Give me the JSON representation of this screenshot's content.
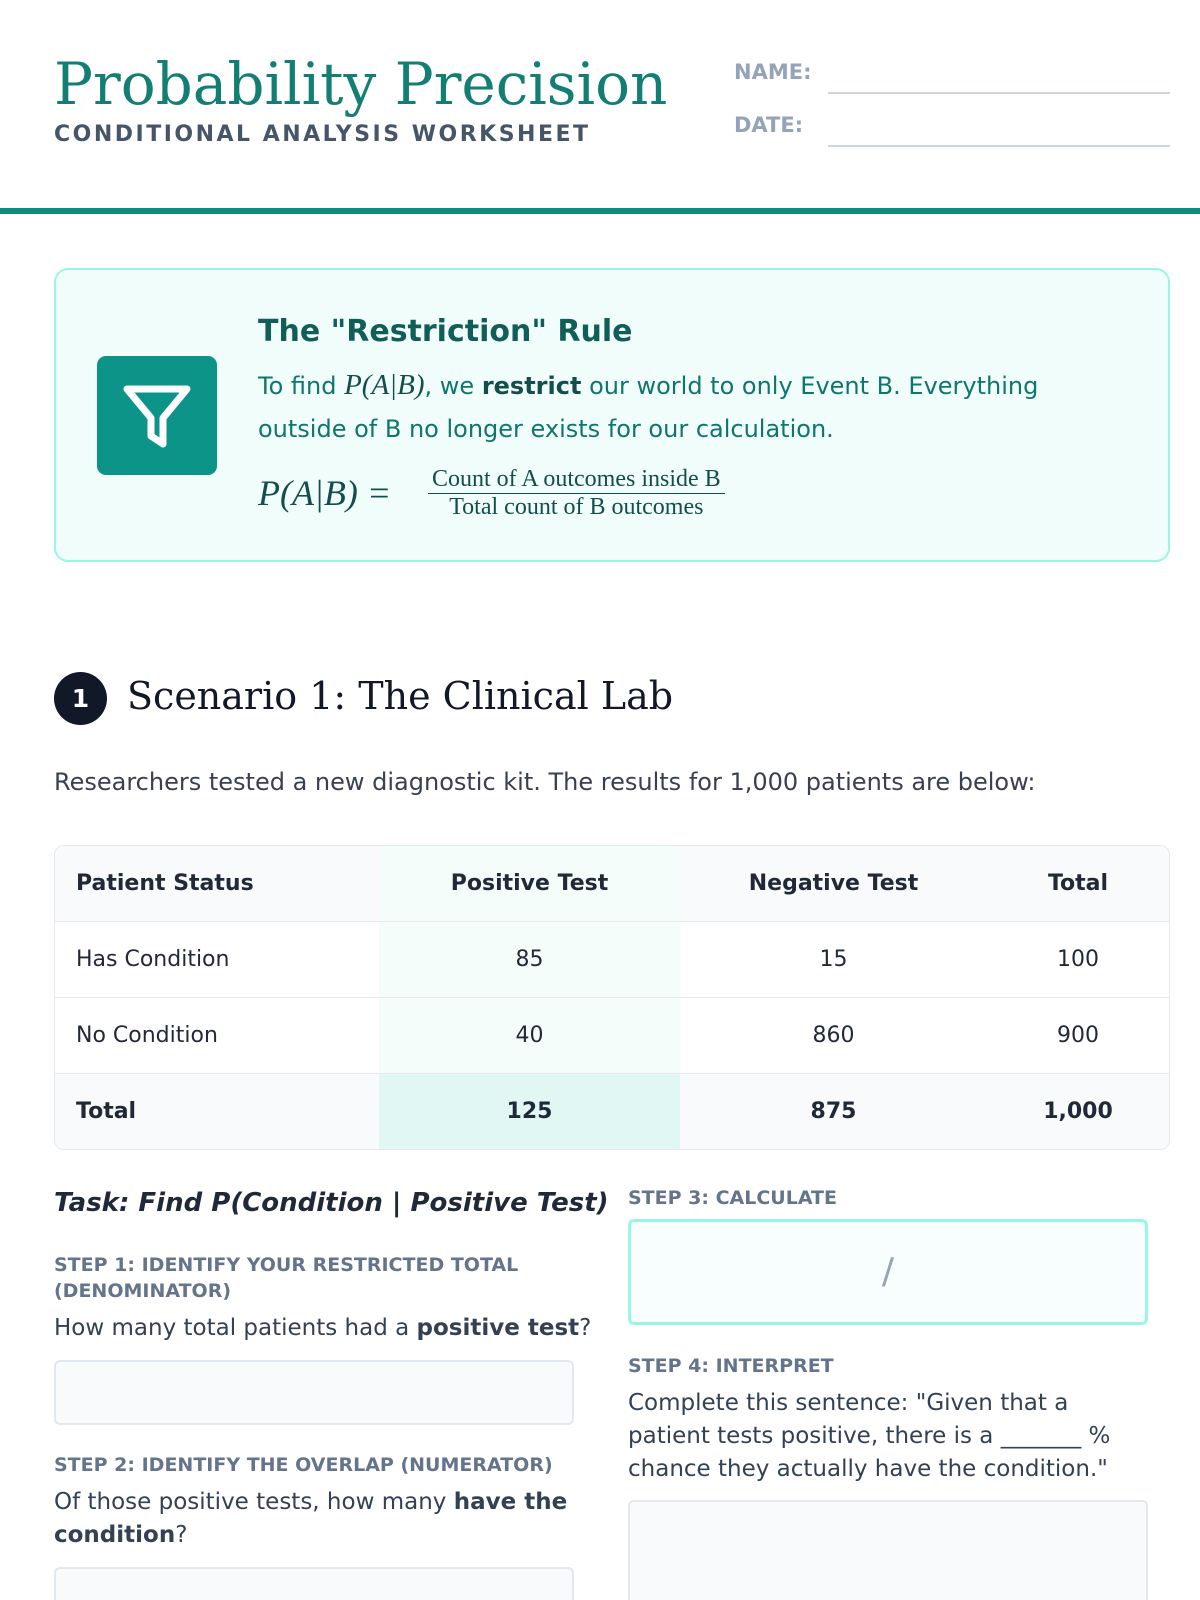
{
  "header": {
    "title": "Probability Precision",
    "subtitle": "CONDITIONAL ANALYSIS WORKSHEET",
    "fields": [
      "NAME:",
      "DATE:"
    ]
  },
  "rule_box": {
    "title": "The \"Restriction\" Rule",
    "text": [
      "To find ",
      "P(A|B)",
      ", we ",
      "restrict",
      " our world to only Event B. Everything outside of B no longer exists for our calculation."
    ],
    "formula": {
      "lhs": "P(A|B) =",
      "numerator": "Count of A outcomes inside B",
      "denominator": "Total count of B outcomes"
    }
  },
  "scenario": {
    "number": "1",
    "title": "Scenario 1: The Clinical Lab",
    "intro": "Researchers tested a new diagnostic kit. The results for 1,000 patients are below:",
    "table": {
      "header": [
        "Patient Status",
        "Positive Test",
        "Negative Test",
        "Total"
      ],
      "rows": [
        [
          "Has Condition",
          "85",
          "15",
          "100"
        ],
        [
          "No Condition",
          "40",
          "860",
          "900"
        ],
        [
          "Total",
          "125",
          "875",
          "1,000"
        ]
      ]
    },
    "task": "Task: Find P(Condition | Positive Test)",
    "steps": [
      {
        "label": "STEP 1: IDENTIFY YOUR RESTRICTED TOTAL (DENOMINATOR)",
        "question": [
          "How many total patients had a ",
          "positive test",
          "?"
        ]
      },
      {
        "label": "STEP 2: IDENTIFY THE OVERLAP (NUMERATOR)",
        "question": [
          "Of those positive tests, how many ",
          "have the condition",
          "?"
        ]
      },
      {
        "label": "STEP 3: CALCULATE",
        "placeholder": "/"
      },
      {
        "label": "STEP 4: INTERPRET",
        "question": [
          "Complete this sentence: \"Given that a patient tests positive, there is a _______ % chance they actually have the condition.\""
        ]
      }
    ]
  }
}
